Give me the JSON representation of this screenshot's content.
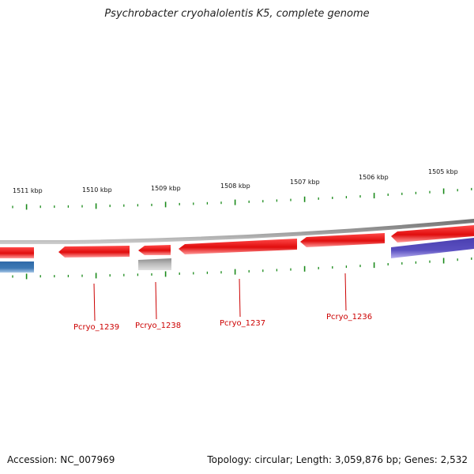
{
  "title": "Psychrobacter cryohalolentis K5, complete genome",
  "footer": {
    "accession": "Accession: NC_007969",
    "summary": "Topology: circular; Length: 3,059,876 bp; Genes: 2,532"
  },
  "colors": {
    "forward_gene": "#ee1111",
    "reverse_gene_blue": "#3c78b4",
    "reverse_gene_purple": "#5a4fc0",
    "rna_gene": "#b0b0b0",
    "backbone": "#808080",
    "tick": "#1a8a1a",
    "label": "#cc0000"
  },
  "scale_labels": [
    "1511 kbp",
    "1510 kbp",
    "1509 kbp",
    "1508 kbp",
    "1507 kbp",
    "1506 kbp",
    "1505 kbp"
  ],
  "gene_labels": [
    "Pcryo_1239",
    "Pcryo_1238",
    "Pcryo_1237",
    "Pcryo_1236"
  ]
}
